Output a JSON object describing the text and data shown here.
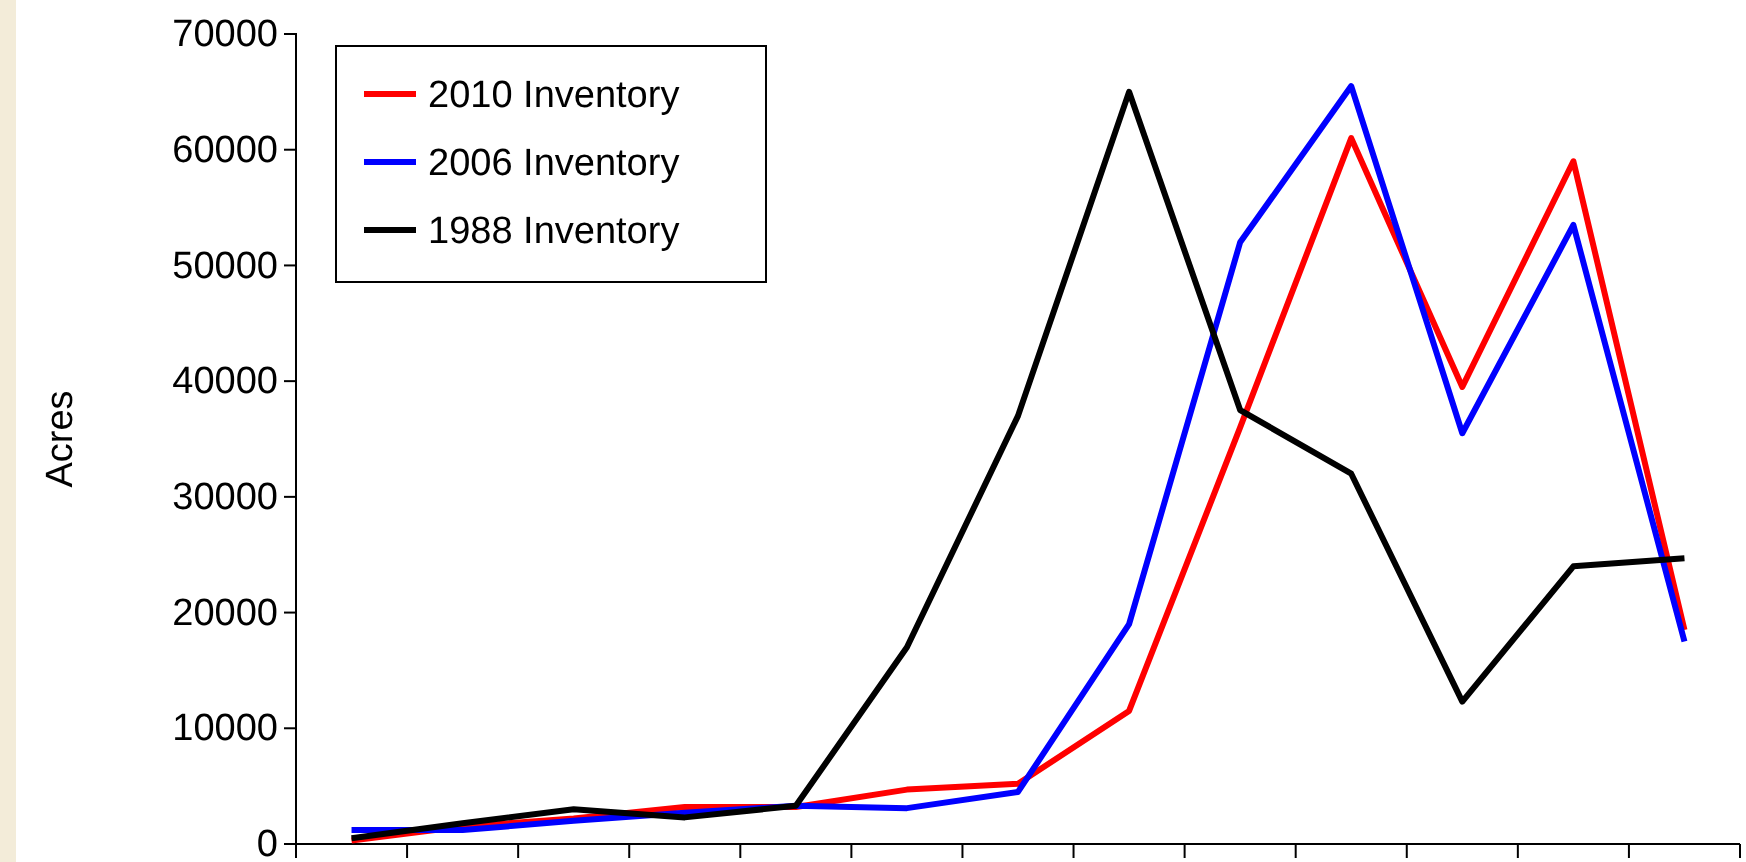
{
  "chart_data": {
    "type": "line",
    "ylabel": "Acres",
    "categories": [
      null,
      null,
      null,
      null,
      null,
      null,
      null,
      null,
      null,
      null,
      null,
      null,
      null
    ],
    "series": [
      {
        "name": "2010 Inventory",
        "color": "#ff0000",
        "values": [
          300,
          1500,
          2200,
          3200,
          3200,
          4700,
          5200,
          11500,
          36000,
          61000,
          39500,
          59000,
          18500
        ]
      },
      {
        "name": "2006 Inventory",
        "color": "#0000ff",
        "values": [
          1200,
          1200,
          2000,
          2700,
          3300,
          3100,
          4500,
          19000,
          52000,
          65500,
          35500,
          53500,
          17500
        ]
      },
      {
        "name": "1988 Inventory",
        "color": "#000000",
        "values": [
          500,
          1800,
          3000,
          2300,
          3300,
          17000,
          37000,
          65000,
          37500,
          32000,
          12300,
          24000,
          24700
        ]
      }
    ],
    "ylim": [
      0,
      70000
    ],
    "yticks": [
      0,
      10000,
      20000,
      30000,
      40000,
      50000,
      60000,
      70000
    ],
    "grid": false,
    "legend": "top left",
    "tick_labels": "y",
    "marker": "none",
    "line_style": "solid"
  }
}
